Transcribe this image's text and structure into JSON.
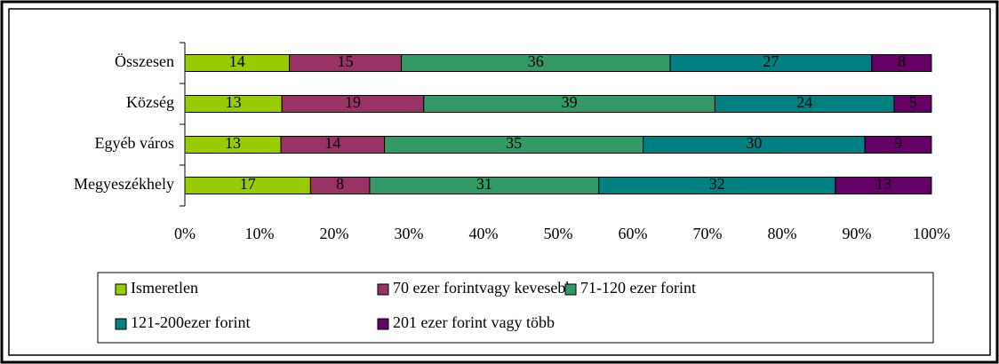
{
  "chart_data": {
    "type": "stacked_percent_barh",
    "categories": [
      "Összesen",
      "Község",
      "Egyéb város",
      "Megyeszékhely"
    ],
    "series": [
      {
        "name": "Ismeretlen",
        "color": "#99cc00",
        "values": [
          14,
          13,
          13,
          17
        ]
      },
      {
        "name": "70 ezer forintvagy kevesebb",
        "color": "#993366",
        "values": [
          15,
          19,
          14,
          8
        ]
      },
      {
        "name": "71-120 ezer forint",
        "color": "#339966",
        "values": [
          36,
          39,
          35,
          31
        ]
      },
      {
        "name": "121-200ezer forint",
        "color": "#008080",
        "values": [
          27,
          24,
          30,
          32
        ]
      },
      {
        "name": "201 ezer forint vagy több",
        "color": "#660066",
        "values": [
          8,
          5,
          9,
          13
        ]
      }
    ],
    "xlim": [
      0,
      100
    ],
    "xticks": [
      {
        "value": 0,
        "label": "0%"
      },
      {
        "value": 10,
        "label": "10%"
      },
      {
        "value": 20,
        "label": "20%"
      },
      {
        "value": 30,
        "label": "30%"
      },
      {
        "value": 40,
        "label": "40%"
      },
      {
        "value": 50,
        "label": "50%"
      },
      {
        "value": 60,
        "label": "60%"
      },
      {
        "value": 70,
        "label": "70%"
      },
      {
        "value": 80,
        "label": "80%"
      },
      {
        "value": 90,
        "label": "90%"
      },
      {
        "value": 100,
        "label": "100%"
      }
    ],
    "legend": "bottom"
  }
}
